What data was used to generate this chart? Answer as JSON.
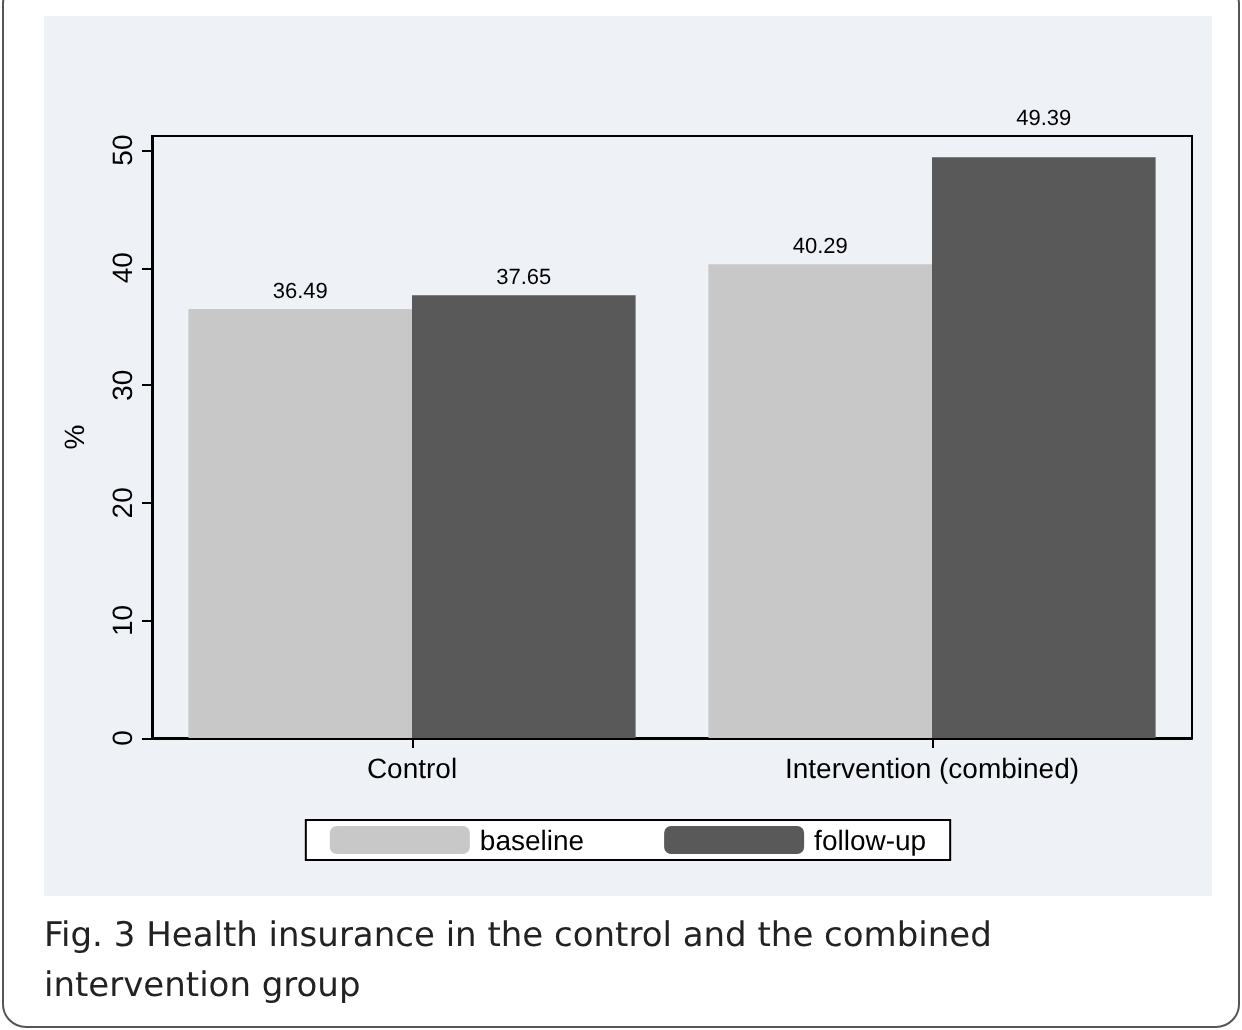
{
  "chart_data": {
    "type": "bar",
    "title": "Fig. 3 Health insurance in the control and the combined intervention group",
    "ylabel": "%",
    "categories": [
      "Control",
      "Intervention (combined)"
    ],
    "series": [
      {
        "name": "baseline",
        "color": "#c8c8c8",
        "values": [
          36.49,
          40.29
        ]
      },
      {
        "name": "follow-up",
        "color": "#595959",
        "values": [
          37.65,
          49.39
        ]
      }
    ],
    "ylim": [
      0,
      51.2
    ],
    "yticks": [
      0,
      10,
      20,
      30,
      40,
      50
    ],
    "data_labels": true,
    "legend": "bottom",
    "grid": false
  }
}
